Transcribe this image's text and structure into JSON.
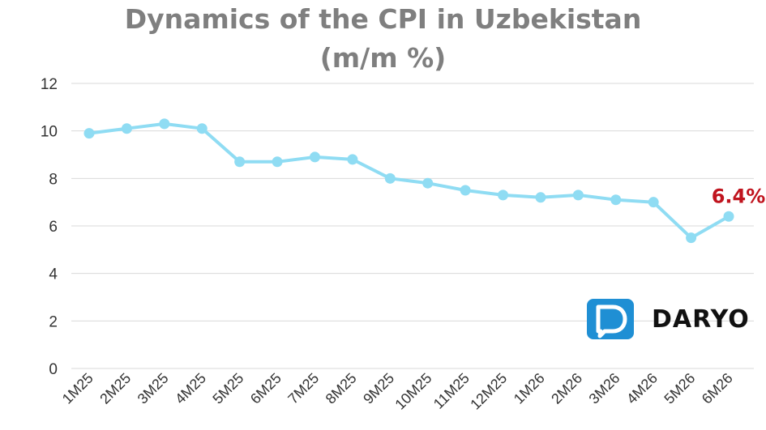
{
  "chart_data": {
    "type": "line",
    "title_line_1": "Dynamics of the CPI in Uzbekistan",
    "title_line_2": "(m/m %)",
    "categories": [
      "1M25",
      "2M25",
      "3M25",
      "4M25",
      "5M25",
      "6M25",
      "7M25",
      "8M25",
      "9M25",
      "10M25",
      "11M25",
      "12M25",
      "1M26",
      "2M26",
      "3M26",
      "4M26",
      "5M26",
      "6M26"
    ],
    "series": [
      {
        "values": [
          9.9,
          10.1,
          10.3,
          10.1,
          8.7,
          8.7,
          8.9,
          8.8,
          8.0,
          7.8,
          7.5,
          7.3,
          7.2,
          7.3,
          7.1,
          7.0,
          5.5,
          6.4
        ],
        "color": "#8fdcf3"
      }
    ],
    "ylim": [
      0,
      12
    ],
    "yticks": [
      "0",
      "2",
      "4",
      "6",
      "8",
      "10",
      "12"
    ],
    "grid": true,
    "callout": {
      "text": "6.4%",
      "color": "#c0141e"
    }
  },
  "logo": {
    "text": "DARYO",
    "icon": "speech-bubble-icon",
    "color": "#1f8fd4"
  }
}
